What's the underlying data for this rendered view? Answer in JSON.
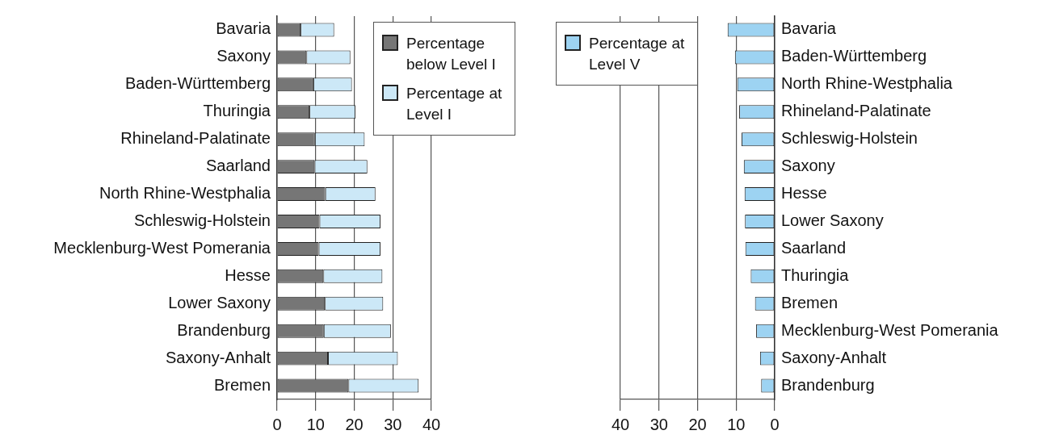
{
  "chart_data": [
    {
      "type": "bar",
      "orientation": "horizontal",
      "stacked": true,
      "categories": [
        "Bavaria",
        "Saxony",
        "Baden-Württemberg",
        "Thuringia",
        "Rhineland-Palatinate",
        "Saarland",
        "North Rhine-Westphalia",
        "Schleswig-Holstein",
        "Mecklenburg-West Pomerania",
        "Hesse",
        "Lower Saxony",
        "Brandenburg",
        "Saxony-Anhalt",
        "Bremen"
      ],
      "series": [
        {
          "name": "Percentage below Level I",
          "color": "#767676",
          "values": [
            6.1,
            7.6,
            9.4,
            8.4,
            9.8,
            9.7,
            12.5,
            11.0,
            10.8,
            12.0,
            12.4,
            12.1,
            13.2,
            18.5
          ]
        },
        {
          "name": "Percentage at Level I",
          "color": "#cce8f7",
          "values": [
            8.7,
            11.4,
            10.0,
            11.9,
            12.9,
            13.7,
            13.0,
            15.8,
            16.0,
            15.3,
            15.1,
            17.4,
            18.1,
            18.2
          ]
        }
      ],
      "xlim": [
        0,
        40
      ],
      "xticks": [
        0,
        10,
        20,
        30,
        40
      ],
      "grid": "x",
      "legend": "top right"
    },
    {
      "type": "bar",
      "orientation": "horizontal",
      "categories": [
        "Bavaria",
        "Baden-Württemberg",
        "North Rhine-Westphalia",
        "Rhineland-Palatinate",
        "Schleswig-Holstein",
        "Saxony",
        "Hesse",
        "Lower Saxony",
        "Saarland",
        "Thuringia",
        "Bremen",
        "Mecklenburg-West Pomerania",
        "Saxony-Anhalt",
        "Brandenburg"
      ],
      "series": [
        {
          "name": "Percentage at Level V",
          "color": "#9dd3f2",
          "values": [
            12.2,
            10.3,
            9.7,
            9.2,
            8.6,
            8.0,
            7.8,
            7.7,
            7.6,
            6.2,
            5.1,
            4.8,
            3.8,
            3.5
          ]
        }
      ],
      "xlim": [
        40,
        0
      ],
      "xticks": [
        40,
        30,
        20,
        10,
        0
      ],
      "grid": "x",
      "legend": "top left"
    }
  ]
}
